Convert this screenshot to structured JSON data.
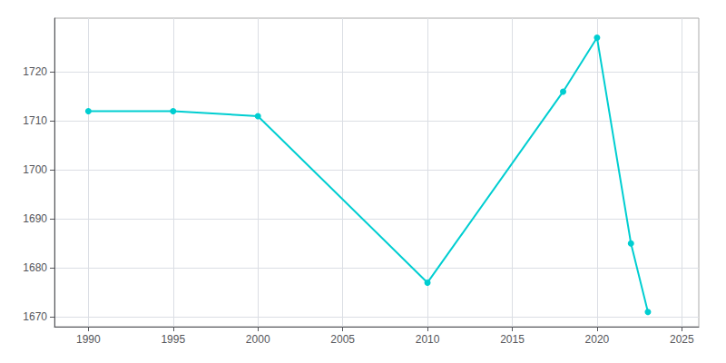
{
  "chart_data": {
    "type": "line",
    "x": [
      1990,
      1995,
      2000,
      2010,
      2018,
      2020,
      2022,
      2023
    ],
    "values": [
      1712,
      1712,
      1711,
      1677,
      1716,
      1727,
      1685,
      1671
    ],
    "color": "#00CED1",
    "marker": "circle",
    "xlim": [
      1988,
      2026
    ],
    "xticks": [
      1990,
      1995,
      2000,
      2005,
      2010,
      2015,
      2020,
      2025
    ],
    "ylim": [
      1668,
      1731
    ],
    "yticks": [
      1670,
      1680,
      1690,
      1700,
      1710,
      1720
    ],
    "grid": true
  }
}
